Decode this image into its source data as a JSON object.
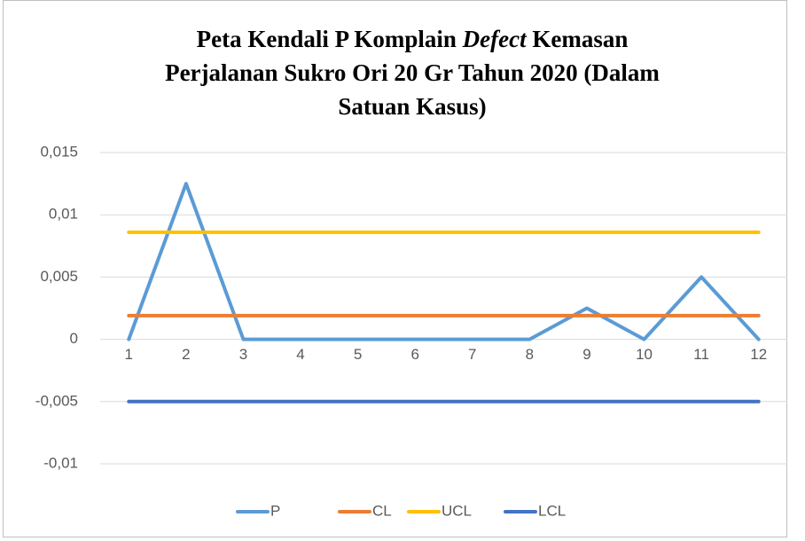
{
  "chart_data": {
    "type": "line",
    "title": [
      [
        "Peta Kendali P Komplain",
        "Defect",
        "Kemasan"
      ],
      "Perjalanan Sukro Ori 20 Gr Tahun 2020 (Dalam",
      "Satuan Kasus)"
    ],
    "categories": [
      "1",
      "2",
      "3",
      "4",
      "5",
      "6",
      "7",
      "8",
      "9",
      "10",
      "11",
      "12"
    ],
    "series": [
      {
        "name": "P",
        "color": "#5b9bd5",
        "values": [
          0,
          0.0125,
          0,
          0,
          0,
          0,
          0,
          0,
          0.0025,
          0,
          0.005,
          0
        ]
      },
      {
        "name": "CL",
        "color": "#ed7d31",
        "values": [
          0.0019,
          0.0019,
          0.0019,
          0.0019,
          0.0019,
          0.0019,
          0.0019,
          0.0019,
          0.0019,
          0.0019,
          0.0019,
          0.0019
        ]
      },
      {
        "name": "UCL",
        "color": "#ffc000",
        "values": [
          0.0086,
          0.0086,
          0.0086,
          0.0086,
          0.0086,
          0.0086,
          0.0086,
          0.0086,
          0.0086,
          0.0086,
          0.0086,
          0.0086
        ]
      },
      {
        "name": "LCL",
        "color": "#4472c4",
        "values": [
          -0.005,
          -0.005,
          -0.005,
          -0.005,
          -0.005,
          -0.005,
          -0.005,
          -0.005,
          -0.005,
          -0.005,
          -0.005,
          -0.005
        ]
      }
    ],
    "ylim": [
      -0.01,
      0.015
    ],
    "yticks": [
      {
        "value": -0.01,
        "label": "-0,01"
      },
      {
        "value": -0.005,
        "label": "-0,005"
      },
      0,
      {
        "value": 0.005,
        "label": "0,005"
      },
      {
        "value": 0.01,
        "label": "0,01"
      },
      {
        "value": 0.015,
        "label": "0,015"
      }
    ],
    "grid": true,
    "legend": "bottom"
  }
}
